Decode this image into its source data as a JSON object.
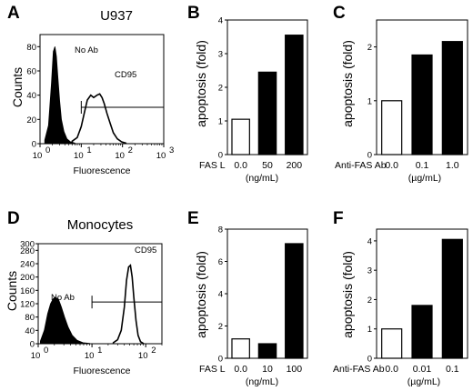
{
  "chart_data": [
    {
      "panel": "A",
      "type": "histogram",
      "title": "U937",
      "xlabel": "Fluorescence",
      "ylabel": "Counts",
      "xscale": "log",
      "x_ticks": [
        "10",
        "10",
        "10",
        "10"
      ],
      "x_tick_exponents": [
        "0",
        "1",
        "2",
        "3"
      ],
      "y_ticks": [
        "0",
        "20",
        "40",
        "60",
        "80"
      ],
      "ylim": [
        0,
        90
      ],
      "xlim": [
        1,
        1000
      ],
      "series": [
        {
          "name": "No Ab",
          "fill": "black",
          "x": [
            1.3,
            1.6,
            1.9,
            2.1,
            2.3,
            2.5,
            2.7,
            3.0,
            3.3,
            3.8,
            4.5,
            5.5,
            7.0
          ],
          "y": [
            3,
            15,
            50,
            76,
            80,
            72,
            55,
            35,
            20,
            10,
            4,
            1.5,
            0.5
          ]
        },
        {
          "name": "CD95",
          "fill": "none",
          "x": [
            6,
            8,
            10,
            12,
            14,
            17,
            20,
            24,
            28,
            32,
            36,
            42,
            50,
            60,
            75,
            95,
            120
          ],
          "y": [
            2,
            5,
            14,
            26,
            36,
            40,
            38,
            40,
            41,
            38,
            33,
            25,
            17,
            9,
            4,
            1.5,
            0.5
          ]
        }
      ],
      "gate": {
        "from": 10,
        "to": 1000,
        "y": 30
      }
    },
    {
      "panel": "B",
      "type": "bar",
      "ylabel": "apoptosis (fold)",
      "categories": [
        "0.0",
        "50",
        "200"
      ],
      "values": [
        1.05,
        2.45,
        3.55
      ],
      "fills": [
        "white",
        "black",
        "black"
      ],
      "ylim": [
        0,
        4
      ],
      "y_ticks": [
        "0",
        "1",
        "2",
        "3",
        "4"
      ],
      "xlabel": "FAS L",
      "xunit": "(ng/mL)"
    },
    {
      "panel": "C",
      "type": "bar",
      "ylabel": "apoptosis (fold)",
      "categories": [
        "0.0",
        "0.1",
        "1.0"
      ],
      "values": [
        1.0,
        1.85,
        2.1
      ],
      "fills": [
        "white",
        "black",
        "black"
      ],
      "ylim": [
        0,
        2.5
      ],
      "y_ticks": [
        "0",
        "1",
        "2"
      ],
      "xlabel": "Anti-FAS Ab",
      "xunit": "(µg/mL)"
    },
    {
      "panel": "D",
      "type": "histogram",
      "title": "Monocytes",
      "xlabel": "Fluorescence",
      "ylabel": "Counts",
      "xscale": "log",
      "x_ticks": [
        "10",
        "10",
        "10"
      ],
      "x_tick_exponents": [
        "0",
        "1",
        "2"
      ],
      "y_ticks": [
        "0",
        "40",
        "80",
        "120",
        "160",
        "200",
        "240",
        "280",
        "300"
      ],
      "ylim": [
        0,
        300
      ],
      "xlim": [
        1,
        200
      ],
      "series": [
        {
          "name": "No Ab",
          "fill": "black",
          "x": [
            1.1,
            1.3,
            1.5,
            1.7,
            1.9,
            2.1,
            2.4,
            2.7,
            3.1,
            3.6,
            4.3,
            5.3,
            6.8,
            9.0
          ],
          "y": [
            8,
            40,
            90,
            120,
            135,
            140,
            132,
            110,
            80,
            50,
            25,
            10,
            3,
            1
          ]
        },
        {
          "name": "CD95",
          "fill": "none",
          "x": [
            25,
            30,
            35,
            40,
            44,
            48,
            52,
            56,
            60,
            66,
            72,
            80,
            90
          ],
          "y": [
            3,
            12,
            40,
            110,
            190,
            230,
            235,
            200,
            140,
            70,
            25,
            6,
            1
          ]
        }
      ],
      "gate": {
        "from": 10,
        "to": 200,
        "y": 125
      }
    },
    {
      "panel": "E",
      "type": "bar",
      "ylabel": "apoptosis (fold)",
      "categories": [
        "0.0",
        "10",
        "100"
      ],
      "values": [
        1.2,
        0.9,
        7.1
      ],
      "fills": [
        "white",
        "black",
        "black"
      ],
      "ylim": [
        0,
        8
      ],
      "y_ticks": [
        "0",
        "2",
        "4",
        "6",
        "8"
      ],
      "xlabel": "FAS L",
      "xunit": "(ng/mL)"
    },
    {
      "panel": "F",
      "type": "bar",
      "ylabel": "apoptosis (fold)",
      "categories": [
        "0.0",
        "0.01",
        "0.1"
      ],
      "values": [
        1.0,
        1.8,
        4.05
      ],
      "fills": [
        "white",
        "black",
        "black"
      ],
      "ylim": [
        0,
        4.4
      ],
      "y_ticks": [
        "0",
        "1",
        "2",
        "3",
        "4"
      ],
      "xlabel": "Anti-FAS Ab",
      "xunit": "(µg/mL)"
    }
  ]
}
